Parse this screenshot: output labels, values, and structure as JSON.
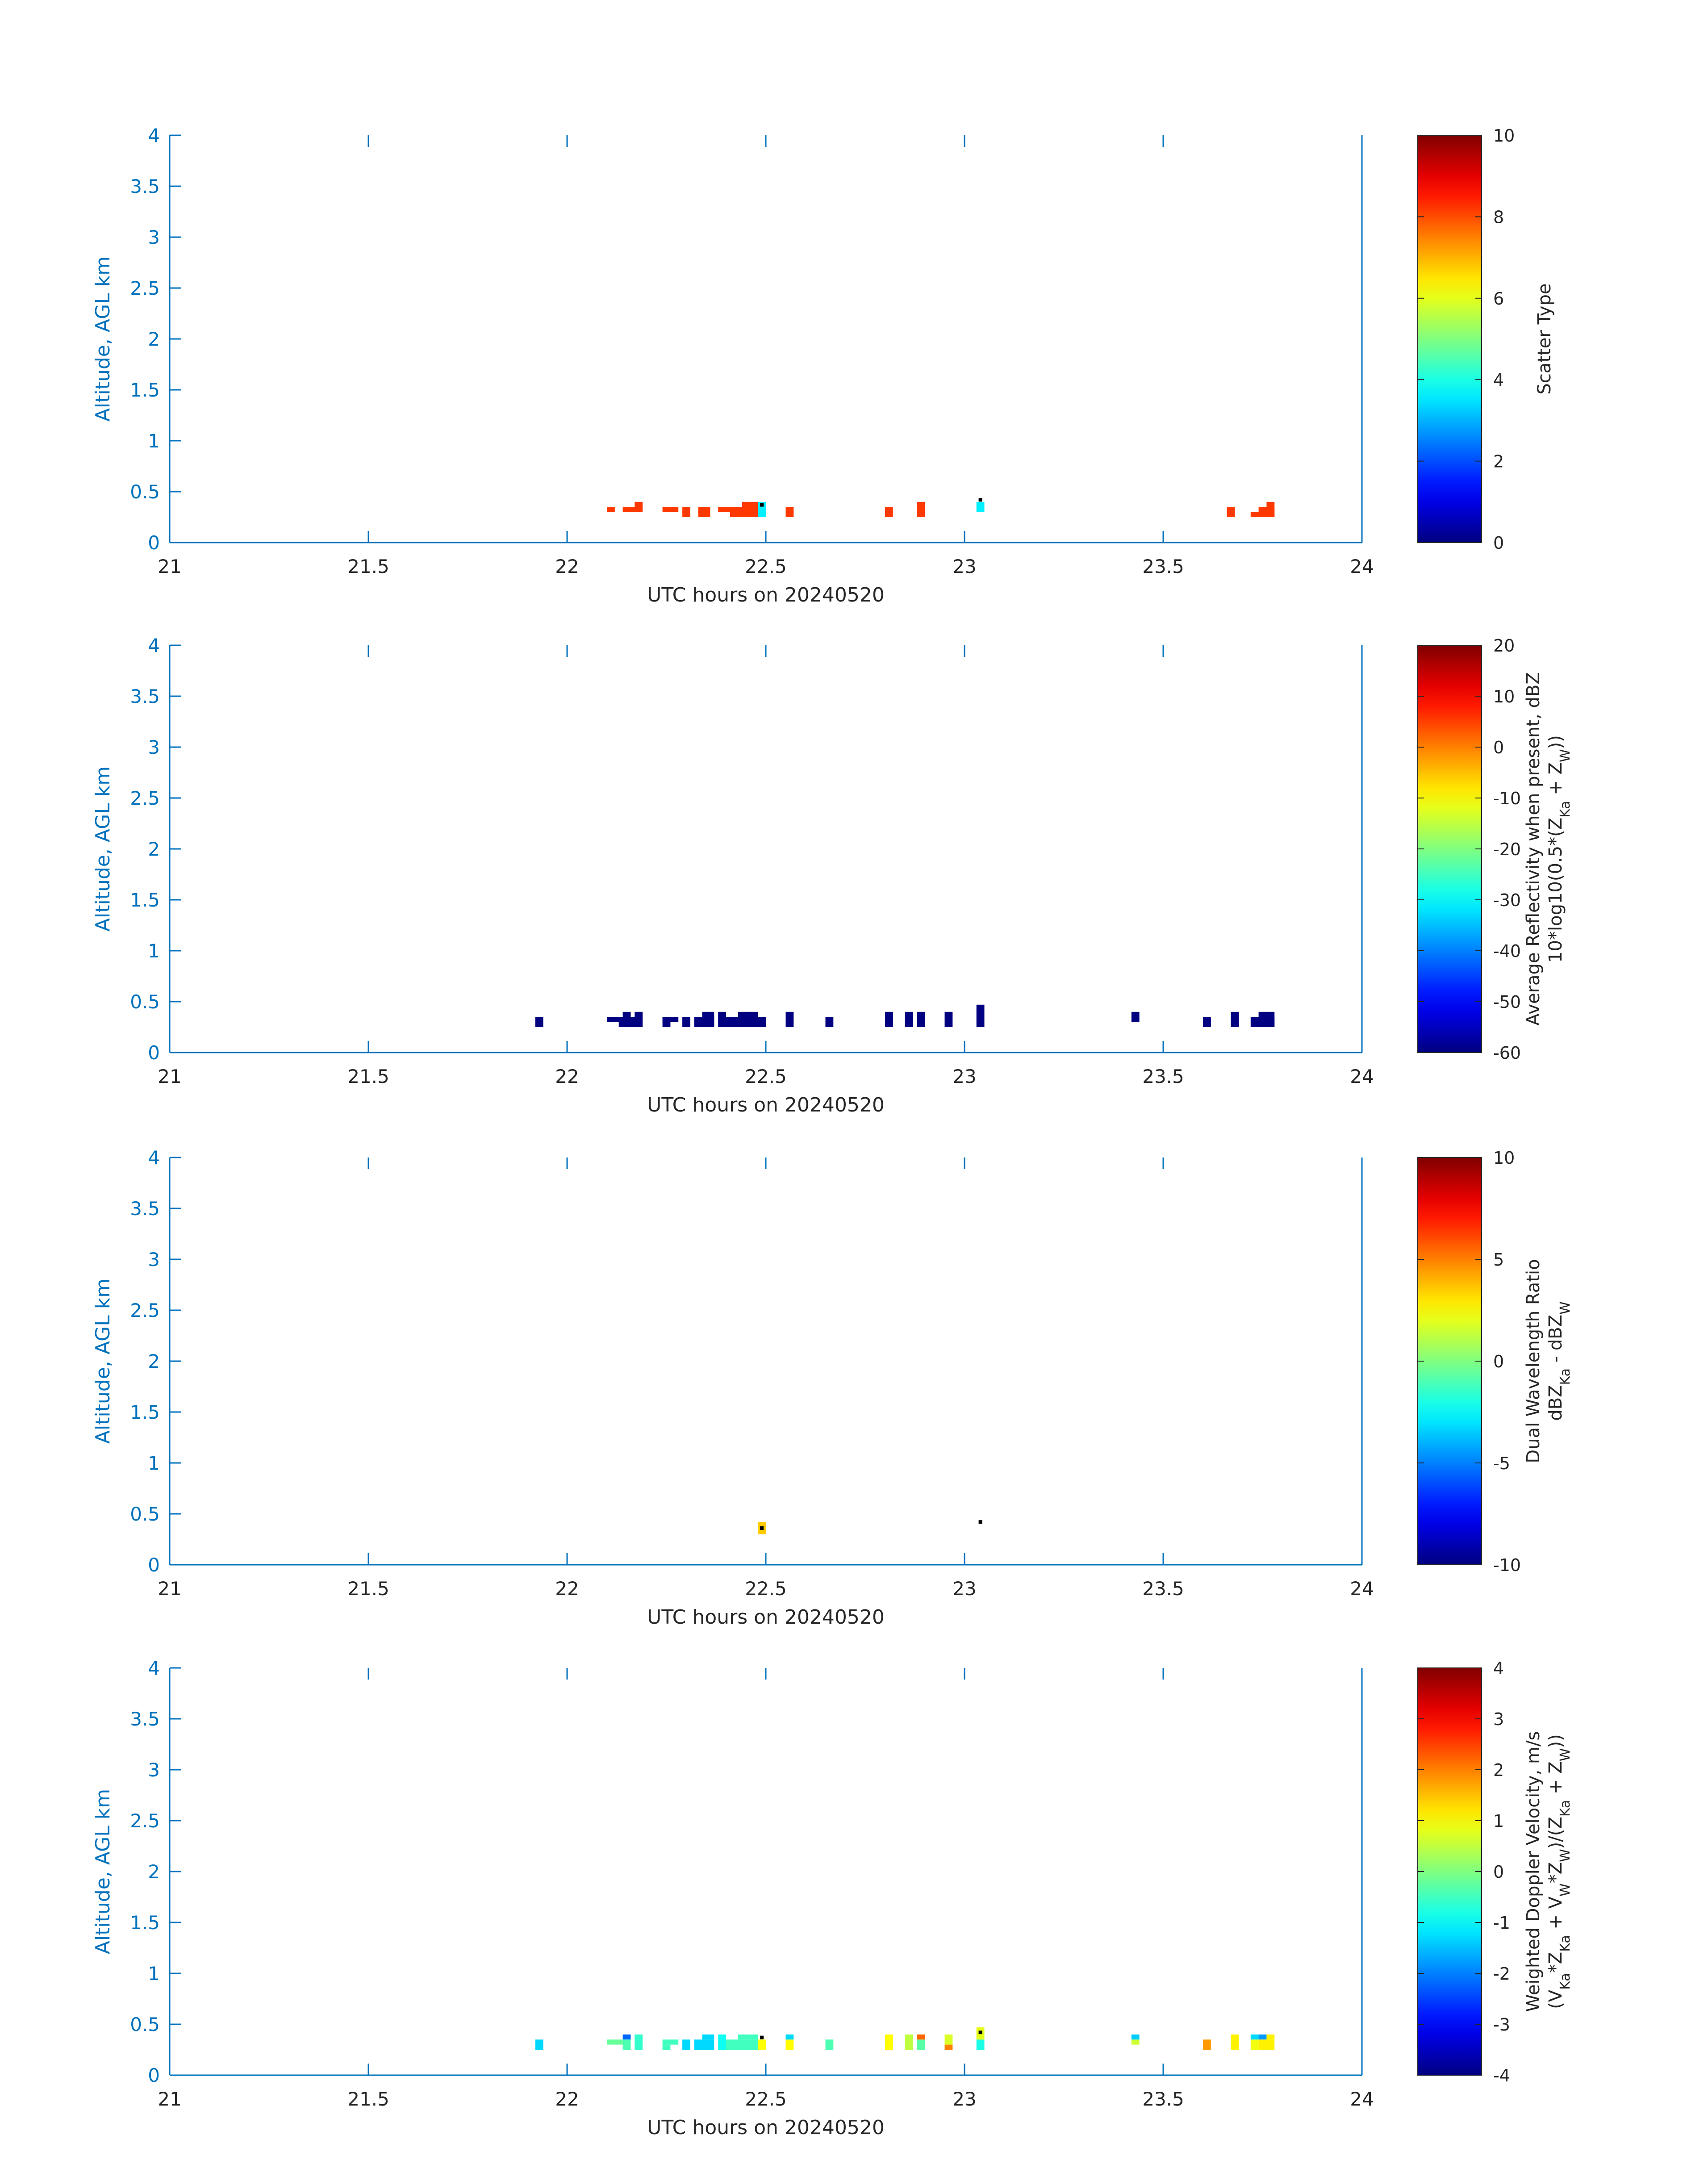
{
  "figure": {
    "colors": {
      "axis": "#0072BD",
      "text": "#262626",
      "background": "#ffffff"
    },
    "colormap": "jet"
  },
  "chart_data": [
    {
      "type": "heatmap",
      "xlabel": "UTC hours on 20240520",
      "ylabel": "Altitude, AGL km",
      "xlim": [
        21,
        24
      ],
      "ylim": [
        0,
        4
      ],
      "xticks": [
        "21",
        "21.5",
        "22",
        "22.5",
        "23",
        "23.5",
        "24"
      ],
      "yticks": [
        "0",
        "0.5",
        "1",
        "1.5",
        "2",
        "2.5",
        "3",
        "3.5",
        "4"
      ],
      "colorbar": {
        "label_lines": [
          [
            {
              "t": "Scatter Type"
            }
          ]
        ],
        "range": [
          0,
          10
        ],
        "ticks": [
          "0",
          "2",
          "4",
          "6",
          "8",
          "10"
        ]
      },
      "cells": [
        {
          "x": [
            22.1,
            22.12
          ],
          "y": [
            0.3,
            0.35
          ],
          "v": 8.2
        },
        {
          "x": [
            22.14,
            22.18
          ],
          "y": [
            0.3,
            0.35
          ],
          "v": 8.2
        },
        {
          "x": [
            22.17,
            22.19
          ],
          "y": [
            0.3,
            0.4
          ],
          "v": 8.2
        },
        {
          "x": [
            22.24,
            22.28
          ],
          "y": [
            0.3,
            0.35
          ],
          "v": 8.2
        },
        {
          "x": [
            22.29,
            22.31
          ],
          "y": [
            0.25,
            0.35
          ],
          "v": 8.2
        },
        {
          "x": [
            22.33,
            22.36
          ],
          "y": [
            0.25,
            0.35
          ],
          "v": 8.2
        },
        {
          "x": [
            22.38,
            22.42
          ],
          "y": [
            0.3,
            0.35
          ],
          "v": 8.2
        },
        {
          "x": [
            22.41,
            22.44
          ],
          "y": [
            0.25,
            0.35
          ],
          "v": 8.2
        },
        {
          "x": [
            22.44,
            22.49
          ],
          "y": [
            0.25,
            0.4
          ],
          "v": 8.2
        },
        {
          "x": [
            22.48,
            22.5
          ],
          "y": [
            0.25,
            0.4
          ],
          "v": 3.6
        },
        {
          "x": [
            22.55,
            22.57
          ],
          "y": [
            0.25,
            0.35
          ],
          "v": 8.2
        },
        {
          "x": [
            22.8,
            22.82
          ],
          "y": [
            0.25,
            0.35
          ],
          "v": 8.2
        },
        {
          "x": [
            22.88,
            22.9
          ],
          "y": [
            0.25,
            0.4
          ],
          "v": 8.2
        },
        {
          "x": [
            23.03,
            23.05
          ],
          "y": [
            0.3,
            0.4
          ],
          "v": 3.6
        },
        {
          "x": [
            23.66,
            23.68
          ],
          "y": [
            0.25,
            0.35
          ],
          "v": 8.2
        },
        {
          "x": [
            23.72,
            23.76
          ],
          "y": [
            0.25,
            0.3
          ],
          "v": 8.2
        },
        {
          "x": [
            23.74,
            23.78
          ],
          "y": [
            0.25,
            0.35
          ],
          "v": 8.2
        },
        {
          "x": [
            23.76,
            23.78
          ],
          "y": [
            0.25,
            0.4
          ],
          "v": 8.2
        }
      ],
      "dots": [
        {
          "x": 22.49,
          "y": 0.37
        },
        {
          "x": 23.04,
          "y": 0.42
        }
      ]
    },
    {
      "type": "heatmap",
      "xlabel": "UTC hours on 20240520",
      "ylabel": "Altitude, AGL km",
      "xlim": [
        21,
        24
      ],
      "ylim": [
        0,
        4
      ],
      "xticks": [
        "21",
        "21.5",
        "22",
        "22.5",
        "23",
        "23.5",
        "24"
      ],
      "yticks": [
        "0",
        "0.5",
        "1",
        "1.5",
        "2",
        "2.5",
        "3",
        "3.5",
        "4"
      ],
      "colorbar": {
        "label_lines": [
          [
            {
              "t": "Average Reflectivity when present, dBZ"
            }
          ],
          [
            {
              "t": "10*log10(0.5*(Z"
            },
            {
              "t": "Ka",
              "sub": true
            },
            {
              "t": " + Z"
            },
            {
              "t": "W",
              "sub": true
            },
            {
              "t": "))"
            }
          ]
        ],
        "range": [
          -60,
          20
        ],
        "ticks": [
          "-60",
          "-50",
          "-40",
          "-30",
          "-20",
          "-10",
          "0",
          "10",
          "20"
        ]
      },
      "cells": [
        {
          "x": [
            21.92,
            21.94
          ],
          "y": [
            0.25,
            0.35
          ],
          "v": -60
        },
        {
          "x": [
            22.1,
            22.14
          ],
          "y": [
            0.3,
            0.35
          ],
          "v": -60
        },
        {
          "x": [
            22.13,
            22.18
          ],
          "y": [
            0.25,
            0.35
          ],
          "v": -60
        },
        {
          "x": [
            22.14,
            22.16
          ],
          "y": [
            0.25,
            0.4
          ],
          "v": -60
        },
        {
          "x": [
            22.17,
            22.19
          ],
          "y": [
            0.25,
            0.4
          ],
          "v": -60
        },
        {
          "x": [
            22.24,
            22.26
          ],
          "y": [
            0.25,
            0.35
          ],
          "v": -60
        },
        {
          "x": [
            22.24,
            22.28
          ],
          "y": [
            0.3,
            0.35
          ],
          "v": -60
        },
        {
          "x": [
            22.29,
            22.31
          ],
          "y": [
            0.25,
            0.35
          ],
          "v": -60
        },
        {
          "x": [
            22.32,
            22.37
          ],
          "y": [
            0.25,
            0.35
          ],
          "v": -60
        },
        {
          "x": [
            22.34,
            22.37
          ],
          "y": [
            0.25,
            0.4
          ],
          "v": -60
        },
        {
          "x": [
            22.38,
            22.4
          ],
          "y": [
            0.25,
            0.4
          ],
          "v": -60
        },
        {
          "x": [
            22.4,
            22.5
          ],
          "y": [
            0.25,
            0.35
          ],
          "v": -60
        },
        {
          "x": [
            22.43,
            22.48
          ],
          "y": [
            0.25,
            0.4
          ],
          "v": -60
        },
        {
          "x": [
            22.55,
            22.57
          ],
          "y": [
            0.25,
            0.4
          ],
          "v": -60
        },
        {
          "x": [
            22.65,
            22.67
          ],
          "y": [
            0.25,
            0.35
          ],
          "v": -60
        },
        {
          "x": [
            22.8,
            22.82
          ],
          "y": [
            0.25,
            0.4
          ],
          "v": -60
        },
        {
          "x": [
            22.85,
            22.87
          ],
          "y": [
            0.25,
            0.4
          ],
          "v": -60
        },
        {
          "x": [
            22.88,
            22.9
          ],
          "y": [
            0.25,
            0.4
          ],
          "v": -60
        },
        {
          "x": [
            22.95,
            22.97
          ],
          "y": [
            0.25,
            0.4
          ],
          "v": -60
        },
        {
          "x": [
            23.03,
            23.05
          ],
          "y": [
            0.25,
            0.47
          ],
          "v": -60
        },
        {
          "x": [
            23.42,
            23.44
          ],
          "y": [
            0.3,
            0.4
          ],
          "v": -60
        },
        {
          "x": [
            23.6,
            23.62
          ],
          "y": [
            0.25,
            0.35
          ],
          "v": -60
        },
        {
          "x": [
            23.67,
            23.69
          ],
          "y": [
            0.25,
            0.4
          ],
          "v": -60
        },
        {
          "x": [
            23.72,
            23.78
          ],
          "y": [
            0.25,
            0.35
          ],
          "v": -60
        },
        {
          "x": [
            23.74,
            23.78
          ],
          "y": [
            0.25,
            0.4
          ],
          "v": -60
        }
      ],
      "dots": []
    },
    {
      "type": "heatmap",
      "xlabel": "UTC hours on 20240520",
      "ylabel": "Altitude, AGL km",
      "xlim": [
        21,
        24
      ],
      "ylim": [
        0,
        4
      ],
      "xticks": [
        "21",
        "21.5",
        "22",
        "22.5",
        "23",
        "23.5",
        "24"
      ],
      "yticks": [
        "0",
        "0.5",
        "1",
        "1.5",
        "2",
        "2.5",
        "3",
        "3.5",
        "4"
      ],
      "colorbar": {
        "label_lines": [
          [
            {
              "t": "Dual Wavelength Ratio"
            }
          ],
          [
            {
              "t": "dBZ"
            },
            {
              "t": "Ka",
              "sub": true
            },
            {
              "t": " - dBZ"
            },
            {
              "t": "W",
              "sub": true
            }
          ]
        ],
        "range": [
          -10,
          10
        ],
        "ticks": [
          "-10",
          "-5",
          "0",
          "5",
          "10"
        ]
      },
      "cells": [
        {
          "x": [
            22.48,
            22.5
          ],
          "y": [
            0.3,
            0.42
          ],
          "v": 3.5
        }
      ],
      "dots": [
        {
          "x": 22.49,
          "y": 0.36
        },
        {
          "x": 23.04,
          "y": 0.42
        }
      ]
    },
    {
      "type": "heatmap",
      "xlabel": "UTC hours on 20240520",
      "ylabel": "Altitude, AGL km",
      "xlim": [
        21,
        24
      ],
      "ylim": [
        0,
        4
      ],
      "xticks": [
        "21",
        "21.5",
        "22",
        "22.5",
        "23",
        "23.5",
        "24"
      ],
      "yticks": [
        "0",
        "0.5",
        "1",
        "1.5",
        "2",
        "2.5",
        "3",
        "3.5",
        "4"
      ],
      "colorbar": {
        "label_lines": [
          [
            {
              "t": "Weighted Doppler Velocity, m/s"
            }
          ],
          [
            {
              "t": "(V"
            },
            {
              "t": "Ka",
              "sub": true
            },
            {
              "t": "*Z"
            },
            {
              "t": "Ka",
              "sub": true
            },
            {
              "t": " + V"
            },
            {
              "t": "W",
              "sub": true
            },
            {
              "t": "*Z"
            },
            {
              "t": "W",
              "sub": true
            },
            {
              "t": ")/(Z"
            },
            {
              "t": "Ka",
              "sub": true
            },
            {
              "t": " + Z"
            },
            {
              "t": "W",
              "sub": true
            },
            {
              "t": "))"
            }
          ]
        ],
        "range": [
          -4,
          4
        ],
        "ticks": [
          "-4",
          "-3",
          "-2",
          "-1",
          "0",
          "1",
          "2",
          "3",
          "4"
        ]
      },
      "cells": [
        {
          "x": [
            21.92,
            21.94
          ],
          "y": [
            0.25,
            0.35
          ],
          "v": -1.3
        },
        {
          "x": [
            22.1,
            22.14
          ],
          "y": [
            0.3,
            0.35
          ],
          "v": -0.2
        },
        {
          "x": [
            22.14,
            22.16
          ],
          "y": [
            0.35,
            0.4
          ],
          "v": -2.2
        },
        {
          "x": [
            22.14,
            22.16
          ],
          "y": [
            0.25,
            0.35
          ],
          "v": -0.4
        },
        {
          "x": [
            22.17,
            22.19
          ],
          "y": [
            0.25,
            0.4
          ],
          "v": -0.6
        },
        {
          "x": [
            22.24,
            22.28
          ],
          "y": [
            0.3,
            0.35
          ],
          "v": -0.5
        },
        {
          "x": [
            22.24,
            22.26
          ],
          "y": [
            0.25,
            0.3
          ],
          "v": -0.5
        },
        {
          "x": [
            22.29,
            22.31
          ],
          "y": [
            0.25,
            0.35
          ],
          "v": -1.3
        },
        {
          "x": [
            22.32,
            22.37
          ],
          "y": [
            0.25,
            0.35
          ],
          "v": -1.3
        },
        {
          "x": [
            22.34,
            22.37
          ],
          "y": [
            0.35,
            0.4
          ],
          "v": -1.3
        },
        {
          "x": [
            22.38,
            22.4
          ],
          "y": [
            0.25,
            0.4
          ],
          "v": -0.9
        },
        {
          "x": [
            22.4,
            22.48
          ],
          "y": [
            0.25,
            0.35
          ],
          "v": -0.5
        },
        {
          "x": [
            22.43,
            22.48
          ],
          "y": [
            0.35,
            0.4
          ],
          "v": -0.5
        },
        {
          "x": [
            22.48,
            22.5
          ],
          "y": [
            0.25,
            0.35
          ],
          "v": 1.0
        },
        {
          "x": [
            22.55,
            22.57
          ],
          "y": [
            0.25,
            0.35
          ],
          "v": 1.0
        },
        {
          "x": [
            22.55,
            22.57
          ],
          "y": [
            0.35,
            0.4
          ],
          "v": -1.3
        },
        {
          "x": [
            22.65,
            22.67
          ],
          "y": [
            0.25,
            0.35
          ],
          "v": -0.4
        },
        {
          "x": [
            22.8,
            22.82
          ],
          "y": [
            0.25,
            0.4
          ],
          "v": 1.0
        },
        {
          "x": [
            22.85,
            22.87
          ],
          "y": [
            0.25,
            0.4
          ],
          "v": 0.5
        },
        {
          "x": [
            22.88,
            22.9
          ],
          "y": [
            0.25,
            0.35
          ],
          "v": -0.3
        },
        {
          "x": [
            22.88,
            22.9
          ],
          "y": [
            0.35,
            0.4
          ],
          "v": 2.2
        },
        {
          "x": [
            22.95,
            22.97
          ],
          "y": [
            0.3,
            0.4
          ],
          "v": 0.7
        },
        {
          "x": [
            22.95,
            22.97
          ],
          "y": [
            0.25,
            0.3
          ],
          "v": 2.0
        },
        {
          "x": [
            23.03,
            23.05
          ],
          "y": [
            0.25,
            0.35
          ],
          "v": -0.8
        },
        {
          "x": [
            23.03,
            23.05
          ],
          "y": [
            0.35,
            0.47
          ],
          "v": 0.8
        },
        {
          "x": [
            23.42,
            23.44
          ],
          "y": [
            0.3,
            0.35
          ],
          "v": 0.6
        },
        {
          "x": [
            23.42,
            23.44
          ],
          "y": [
            0.35,
            0.4
          ],
          "v": -1.4
        },
        {
          "x": [
            23.6,
            23.62
          ],
          "y": [
            0.25,
            0.35
          ],
          "v": 1.8
        },
        {
          "x": [
            23.67,
            23.69
          ],
          "y": [
            0.25,
            0.4
          ],
          "v": 1.1
        },
        {
          "x": [
            23.72,
            23.74
          ],
          "y": [
            0.25,
            0.35
          ],
          "v": 0.9
        },
        {
          "x": [
            23.72,
            23.74
          ],
          "y": [
            0.35,
            0.4
          ],
          "v": -1.3
        },
        {
          "x": [
            23.74,
            23.76
          ],
          "y": [
            0.35,
            0.4
          ],
          "v": -1.8
        },
        {
          "x": [
            23.74,
            23.78
          ],
          "y": [
            0.25,
            0.35
          ],
          "v": 1.1
        },
        {
          "x": [
            23.76,
            23.78
          ],
          "y": [
            0.35,
            0.4
          ],
          "v": 1.1
        }
      ],
      "dots": [
        {
          "x": 22.49,
          "y": 0.37
        },
        {
          "x": 23.04,
          "y": 0.42
        }
      ]
    }
  ]
}
